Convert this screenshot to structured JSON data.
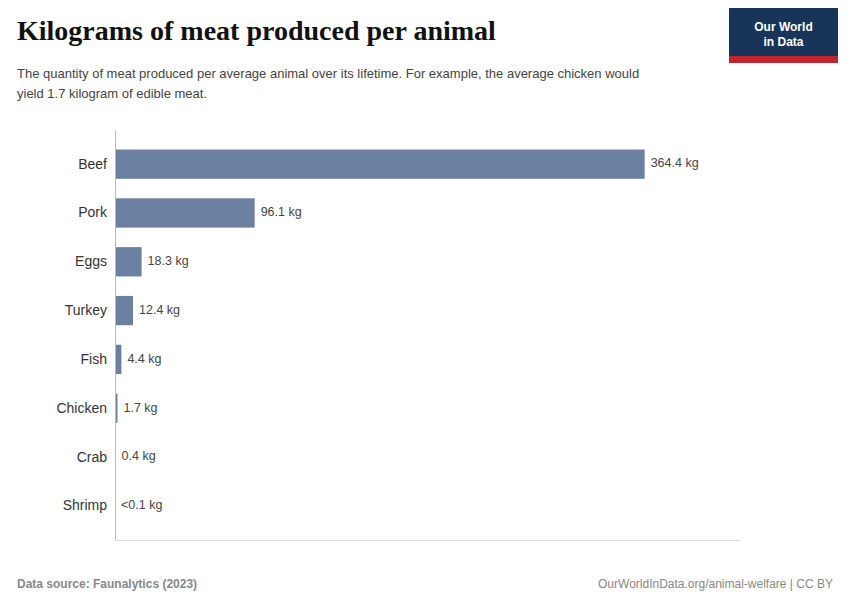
{
  "chart_data": {
    "type": "bar",
    "orientation": "horizontal",
    "title": "Kilograms of meat produced per animal",
    "subtitle": "The quantity of meat produced per average animal over its lifetime. For example, the average chicken would\nyield 1.7 kilogram of edible meat.",
    "categories": [
      "Beef",
      "Pork",
      "Eggs",
      "Turkey",
      "Fish",
      "Chicken",
      "Crab",
      "Shrimp"
    ],
    "values": [
      364.4,
      96.1,
      18.3,
      12.4,
      4.4,
      1.7,
      0.4,
      0.05
    ],
    "value_labels": [
      "364.4 kg",
      "96.1 kg",
      "18.3 kg",
      "12.4 kg",
      "4.4 kg",
      "1.7 kg",
      "0.4 kg",
      "<0.1 kg"
    ],
    "color": "#6b7fa3",
    "xlim": [
      0,
      430
    ],
    "grid": false,
    "tick_labels": "y",
    "annotations": [
      "Data source: Faunalytics (2023)",
      "OurWorldInData.org/animal-welfare | CC BY",
      "Our World",
      "in Data"
    ]
  }
}
